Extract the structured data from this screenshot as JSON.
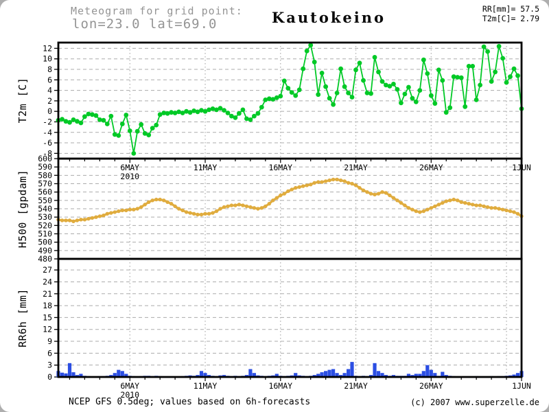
{
  "header": {
    "title_line1": "Meteogram for grid point:",
    "title_line2": "lon=23.0 lat=69.0",
    "station": "Kautokeino",
    "summary_line1": "RR[mm]= 57.5",
    "summary_line2": "T2m[C]= 2.79"
  },
  "footer": {
    "source": "NCEP GFS 0.5deg; values based on 6h-forecasts",
    "copyright": "(c) 2007 www.superzelle.de"
  },
  "colors": {
    "t2m_green": "#00c926",
    "h500_orange": "#e0ac3e",
    "rr6h_blue": "#2b4ee3",
    "grid": "#ababab",
    "header_gray": "#949494",
    "frame": "#000000"
  },
  "x_axis": {
    "tick_labels": [
      "6MAY",
      "11MAY",
      "16MAY",
      "21MAY",
      "26MAY",
      "1JUN"
    ],
    "tick_days": [
      5,
      10,
      15,
      20,
      25,
      31
    ],
    "grid_days": [
      5,
      10,
      15,
      20,
      25,
      30
    ],
    "year_label": "2010",
    "start_day": 0.25,
    "end_day": 31,
    "step_days": 0.25
  },
  "chart_data": [
    {
      "type": "line",
      "name": "T2m",
      "ylabel": "T2m [C]",
      "yticks": [
        12,
        10,
        8,
        6,
        4,
        2,
        0,
        -2,
        -4,
        -6,
        -8
      ],
      "ylim": [
        -9.0,
        13.1
      ],
      "color": "#00c926",
      "line_width": 1.8,
      "marker_radius": 3.4,
      "values": [
        -1.7,
        -1.5,
        -1.9,
        -2.1,
        -1.6,
        -1.9,
        -2.2,
        -1.0,
        -0.5,
        -0.6,
        -0.8,
        -1.6,
        -1.7,
        -2.4,
        -0.9,
        -4.4,
        -4.6,
        -2.4,
        -0.7,
        -3.7,
        -8.0,
        -3.8,
        -2.5,
        -4.2,
        -4.5,
        -3.2,
        -2.6,
        -0.6,
        -0.3,
        -0.4,
        -0.2,
        -0.3,
        -0.1,
        -0.3,
        0.0,
        -0.2,
        0.1,
        -0.1,
        0.2,
        0.0,
        0.3,
        0.5,
        0.3,
        0.6,
        0.2,
        -0.3,
        -0.9,
        -1.2,
        -0.4,
        0.3,
        -1.4,
        -1.6,
        -0.9,
        -0.4,
        0.8,
        2.2,
        2.4,
        2.3,
        2.6,
        2.9,
        5.8,
        4.4,
        3.6,
        3.0,
        4.1,
        8.1,
        11.5,
        12.6,
        9.4,
        3.2,
        7.3,
        4.7,
        2.5,
        1.3,
        3.5,
        8.1,
        4.7,
        3.5,
        2.7,
        7.9,
        9.2,
        5.9,
        3.5,
        3.4,
        10.3,
        7.5,
        5.7,
        5.0,
        4.8,
        5.2,
        4.2,
        1.6,
        3.3,
        4.6,
        2.5,
        1.8,
        4.0,
        9.8,
        7.2,
        3.0,
        1.5,
        7.9,
        5.9,
        -0.2,
        0.7,
        6.6,
        6.5,
        6.4,
        0.9,
        8.6,
        8.6,
        2.2,
        5.0,
        12.3,
        11.4,
        5.7,
        7.5,
        12.4,
        10.1,
        5.5,
        6.6,
        8.1,
        6.8,
        0.5
      ]
    },
    {
      "type": "line",
      "name": "H500",
      "ylabel": "H500 [gpdam]",
      "yticks": [
        600,
        590,
        580,
        570,
        560,
        550,
        540,
        530,
        520,
        510,
        500,
        490,
        480
      ],
      "ylim": [
        480,
        600
      ],
      "color": "#e0ac3e",
      "line_width": 3.2,
      "marker_radius": 2.7,
      "values": [
        527,
        526,
        526,
        526,
        525,
        526,
        527,
        527,
        528,
        529,
        530,
        531,
        532,
        534,
        535,
        536,
        537,
        538,
        538,
        539,
        539,
        540,
        542,
        545,
        548,
        550,
        551,
        551,
        550,
        548,
        546,
        543,
        540,
        538,
        536,
        535,
        534,
        533,
        533,
        534,
        534,
        535,
        537,
        540,
        542,
        543,
        544,
        544,
        545,
        544,
        543,
        542,
        541,
        540,
        541,
        543,
        546,
        550,
        553,
        556,
        558,
        561,
        563,
        565,
        566,
        567,
        568,
        569,
        571,
        572,
        572,
        573,
        574,
        575,
        575,
        574,
        573,
        571,
        570,
        568,
        565,
        562,
        560,
        558,
        557,
        558,
        560,
        559,
        556,
        553,
        550,
        547,
        544,
        541,
        539,
        537,
        536,
        537,
        539,
        541,
        543,
        545,
        547,
        549,
        550,
        551,
        550,
        548,
        547,
        546,
        545,
        544,
        544,
        543,
        542,
        541,
        541,
        540,
        539,
        538,
        537,
        536,
        534,
        531
      ]
    },
    {
      "type": "bar",
      "name": "RR6h",
      "ylabel": "RR6h [mm]",
      "yticks": [
        27,
        24,
        21,
        18,
        15,
        12,
        9,
        6,
        3,
        0
      ],
      "ylim": [
        0,
        29.8
      ],
      "color": "#2b4ee3",
      "values": [
        1.5,
        1.1,
        0.9,
        3.5,
        1.2,
        0.5,
        0.8,
        0.3,
        0.2,
        0.1,
        0.1,
        0.2,
        0.2,
        0.3,
        0.5,
        1.0,
        1.8,
        1.5,
        0.8,
        0.3,
        0.2,
        0.1,
        0.2,
        0.3,
        0.3,
        0.2,
        0.3,
        0.2,
        0.1,
        0.1,
        0.1,
        0.1,
        0.1,
        0.2,
        0.3,
        0.4,
        0.3,
        0.5,
        1.5,
        1.0,
        0.5,
        0.3,
        0.2,
        0.4,
        0.5,
        0.3,
        0.2,
        0.3,
        0.2,
        0.3,
        0.5,
        2.0,
        1.0,
        0.4,
        0.3,
        0.2,
        0.3,
        0.4,
        0.8,
        0.3,
        0.2,
        0.3,
        0.4,
        1.0,
        0.4,
        0.3,
        0.2,
        0.3,
        0.5,
        0.8,
        1.2,
        1.5,
        1.8,
        2.0,
        1.0,
        0.5,
        1.0,
        2.0,
        3.8,
        0.3,
        0.2,
        0.3,
        0.2,
        0.5,
        3.5,
        1.5,
        1.0,
        0.5,
        0.3,
        0.5,
        0.3,
        0.3,
        0.3,
        0.8,
        0.5,
        0.8,
        0.8,
        1.5,
        3.0,
        1.8,
        1.0,
        0.3,
        1.3,
        0.5,
        0.3,
        0.2,
        0.1,
        0.1,
        0.1,
        0.1,
        0.1,
        0.2,
        0.1,
        0.1,
        0.1,
        0.2,
        0.1,
        0.2,
        0.2,
        0.3,
        0.4,
        0.6,
        1.0,
        1.5
      ]
    }
  ]
}
